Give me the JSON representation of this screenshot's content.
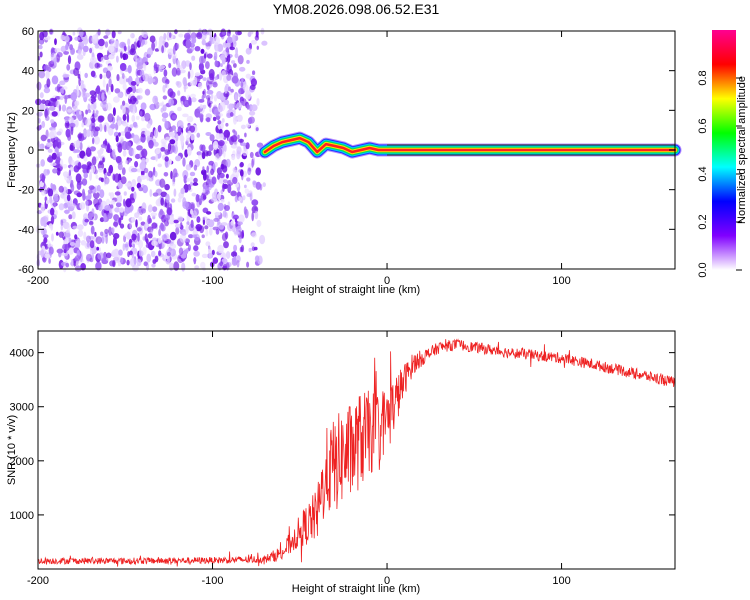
{
  "title": "YM08.2026.098.06.52.E31",
  "chart_data": [
    {
      "type": "heatmap",
      "name": "spectrogram",
      "xlabel": "Height of straight line (km)",
      "ylabel": "Frequency (Hz)",
      "xlim": [
        -200,
        165
      ],
      "ylim": [
        -60,
        60
      ],
      "xticks": [
        -200,
        -100,
        0,
        100
      ],
      "yticks": [
        -60,
        -40,
        -20,
        0,
        20,
        40,
        60
      ],
      "colorbar": {
        "label": "Normalized spectral amplitude",
        "range": [
          0.0,
          1.0
        ],
        "ticks": [
          0.0,
          0.2,
          0.4,
          0.6,
          0.8
        ],
        "tick_labels": [
          "0.0",
          "0.2",
          "0.4",
          "0.6",
          "0.8"
        ],
        "colors": [
          "#ffffff",
          "#8000ff",
          "#0000ff",
          "#00ffff",
          "#00ff00",
          "#ffff00",
          "#ff0000",
          "#ff0090"
        ]
      },
      "noise_region": {
        "x_from": -200,
        "x_to": -70,
        "amplitude": 0.2
      },
      "carrier_line": [
        {
          "x": -70,
          "f": -1
        },
        {
          "x": -65,
          "f": 2
        },
        {
          "x": -60,
          "f": 4
        },
        {
          "x": -55,
          "f": 5
        },
        {
          "x": -50,
          "f": 6
        },
        {
          "x": -45,
          "f": 4
        },
        {
          "x": -40,
          "f": -1
        },
        {
          "x": -35,
          "f": 3
        },
        {
          "x": -30,
          "f": 2
        },
        {
          "x": -25,
          "f": 1
        },
        {
          "x": -20,
          "f": -1
        },
        {
          "x": -15,
          "f": 0
        },
        {
          "x": -10,
          "f": 1
        },
        {
          "x": -5,
          "f": 0
        },
        {
          "x": 0,
          "f": 0
        },
        {
          "x": 165,
          "f": 0
        }
      ]
    },
    {
      "type": "line",
      "name": "snr",
      "xlabel": "Height of straight line (km)",
      "ylabel": "SNR (10 * v/v)",
      "xlim": [
        -200,
        165
      ],
      "ylim": [
        0,
        4400
      ],
      "xticks": [
        -200,
        -100,
        0,
        100
      ],
      "yticks": [
        1000,
        2000,
        3000,
        4000
      ],
      "series": [
        {
          "name": "SNR",
          "color": "#ee2222",
          "x": [
            -200,
            -150,
            -100,
            -70,
            -60,
            -50,
            -40,
            -35,
            -30,
            -25,
            -20,
            -15,
            -10,
            -5,
            0,
            5,
            10,
            15,
            20,
            25,
            30,
            40,
            50,
            70,
            100,
            130,
            165
          ],
          "y": [
            150,
            150,
            160,
            180,
            300,
            700,
            1000,
            1800,
            1900,
            2100,
            2200,
            2400,
            2500,
            2600,
            2800,
            3100,
            3500,
            3800,
            3900,
            4000,
            4100,
            4150,
            4100,
            4000,
            3900,
            3700,
            3450
          ],
          "noise_amplitude": [
            60,
            60,
            60,
            70,
            150,
            300,
            500,
            800,
            900,
            900,
            900,
            900,
            800,
            700,
            600,
            500,
            300,
            200,
            150,
            120,
            110,
            100,
            100,
            100,
            100,
            100,
            100
          ]
        }
      ]
    }
  ]
}
